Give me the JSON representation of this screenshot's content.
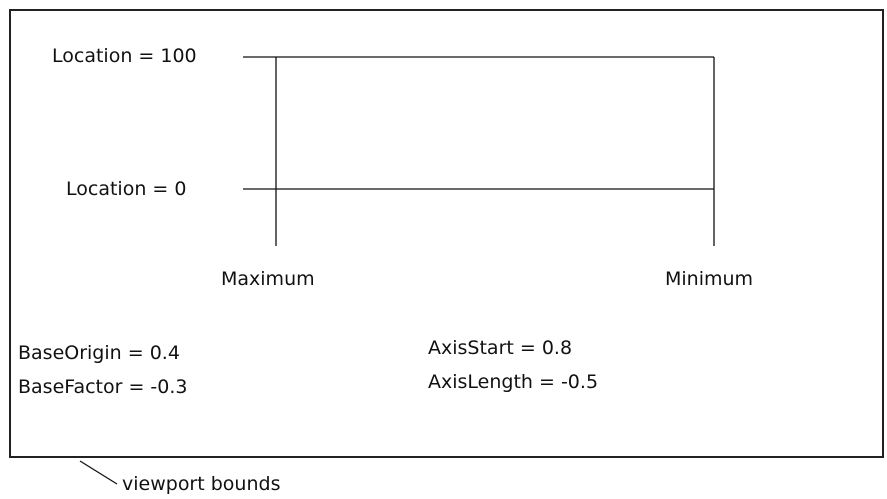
{
  "diagram": {
    "location_top_label": "Location = 100",
    "location_bottom_label": "Location = 0",
    "maximum_label": "Maximum",
    "minimum_label": "Minimum",
    "base_origin_label": "BaseOrigin = 0.4",
    "base_factor_label": "BaseFactor = -0.3",
    "axis_start_label": "AxisStart = 0.8",
    "axis_length_label": "AxisLength = -0.5",
    "viewport_caption": "viewport bounds"
  }
}
